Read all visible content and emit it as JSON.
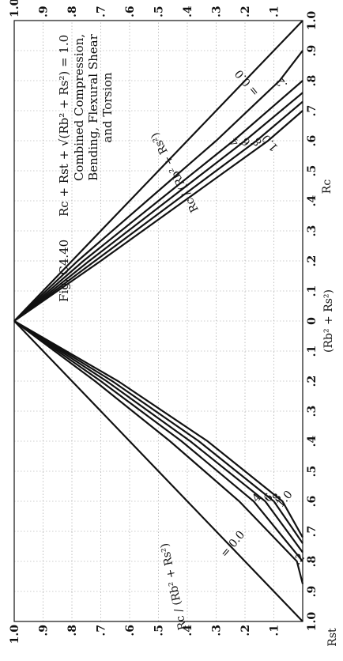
{
  "chart_data": {
    "type": "line",
    "figure_label": "Fig. C4.40",
    "equation": "Rc + Rst + √(Rb² + Rs²) = 1.0",
    "subtitle_lines": [
      "Combined Compression,",
      "Bending, Flexural Shear",
      "and Torsion"
    ],
    "xlabel": "Rc",
    "ylabel_left": "Rst",
    "ylabel_right": "(Rb² + Rs²)",
    "xlim": [
      0,
      1.0
    ],
    "ylim": [
      0,
      1.0
    ],
    "x_ticks": [
      "1.0",
      ".9",
      ".8",
      ".7",
      ".6",
      ".5",
      ".4",
      ".3",
      ".2",
      ".1",
      "0",
      ".1",
      ".2",
      ".3",
      ".4",
      ".5",
      ".6",
      ".7",
      ".8",
      ".9",
      "1.0"
    ],
    "y_ticks": [
      "1.0",
      ".9",
      ".8",
      ".7",
      ".6",
      ".5",
      ".4",
      ".3",
      ".2",
      ".1"
    ],
    "grid": true,
    "left_family": {
      "parameter_label": "Rc / (Rb² + Rs²)",
      "series": [
        {
          "value": "0.0",
          "label": "= 0.0",
          "x": [
            0,
            0.25,
            0.5,
            0.75,
            1.0
          ],
          "y": [
            1.0,
            0.75,
            0.5,
            0.25,
            0.0
          ]
        },
        {
          "value": ".2",
          "label": ".2",
          "x": [
            0,
            0.2,
            0.4,
            0.6,
            0.8,
            0.875
          ],
          "y": [
            1.0,
            0.72,
            0.46,
            0.22,
            0.02,
            0.0
          ]
        },
        {
          "value": ".4",
          "label": ".4",
          "x": [
            0,
            0.2,
            0.4,
            0.6,
            0.8
          ],
          "y": [
            1.0,
            0.7,
            0.42,
            0.17,
            0.0
          ]
        },
        {
          "value": ".6",
          "label": ".6",
          "x": [
            0,
            0.2,
            0.4,
            0.6,
            0.77
          ],
          "y": [
            1.0,
            0.68,
            0.39,
            0.13,
            0.0
          ]
        },
        {
          "value": ".8",
          "label": ".8",
          "x": [
            0,
            0.2,
            0.4,
            0.6,
            0.74
          ],
          "y": [
            1.0,
            0.66,
            0.36,
            0.1,
            0.0
          ]
        },
        {
          "value": "1.0",
          "label": "1.0",
          "x": [
            0,
            0.2,
            0.4,
            0.6,
            0.72
          ],
          "y": [
            1.0,
            0.64,
            0.33,
            0.07,
            0.0
          ]
        }
      ]
    },
    "right_family": {
      "parameter_label": "Rc / (Rb² + Rs²)",
      "series": [
        {
          "value": "0.0",
          "label": "= 0.0",
          "x": [
            0,
            0.2,
            0.4,
            0.6,
            0.8,
            1.0
          ],
          "y": [
            1.0,
            0.8,
            0.6,
            0.4,
            0.2,
            0.0
          ]
        },
        {
          "value": ".2",
          "label": ".2",
          "x": [
            0,
            0.2,
            0.4,
            0.6,
            0.8,
            0.9
          ],
          "y": [
            1.0,
            0.78,
            0.54,
            0.3,
            0.08,
            0.0
          ]
        },
        {
          "value": ".4",
          "label": ".4",
          "x": [
            0,
            0.2,
            0.4,
            0.6,
            0.8
          ],
          "y": [
            1.0,
            0.76,
            0.5,
            0.24,
            0.0
          ]
        },
        {
          "value": ".6",
          "label": ".6",
          "x": [
            0,
            0.2,
            0.4,
            0.6,
            0.76
          ],
          "y": [
            1.0,
            0.74,
            0.47,
            0.2,
            0.0
          ]
        },
        {
          "value": ".8",
          "label": ".8",
          "x": [
            0,
            0.2,
            0.4,
            0.6,
            0.73
          ],
          "y": [
            1.0,
            0.72,
            0.44,
            0.16,
            0.0
          ]
        },
        {
          "value": "1.0",
          "label": "1.0",
          "x": [
            0,
            0.2,
            0.4,
            0.6,
            0.7
          ],
          "y": [
            1.0,
            0.7,
            0.41,
            0.12,
            0.0
          ]
        }
      ]
    }
  }
}
